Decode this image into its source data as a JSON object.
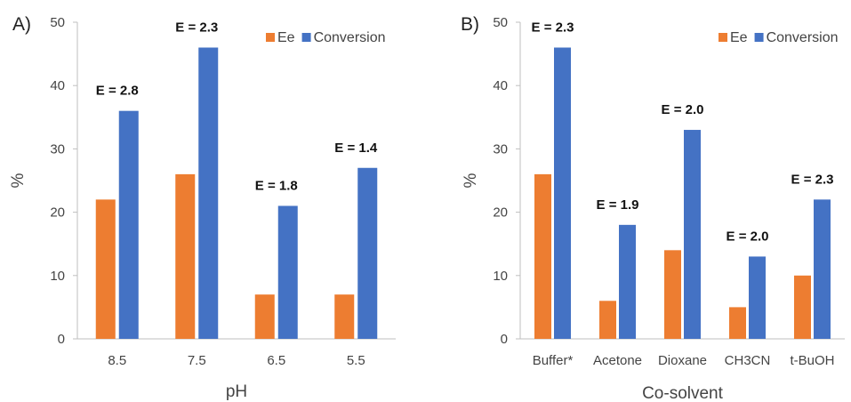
{
  "colors": {
    "ee": "#ED7D31",
    "conversion": "#4472C4"
  },
  "chart_data": [
    {
      "type": "bar",
      "panel_label": "A)",
      "categories": [
        "8.5",
        "7.5",
        "6.5",
        "5.5"
      ],
      "series": [
        {
          "name": "Ee",
          "values": [
            22,
            26,
            7,
            7
          ]
        },
        {
          "name": "Conversion",
          "values": [
            36,
            46,
            21,
            27
          ]
        }
      ],
      "annotations": [
        "E = 2.8",
        "E = 2.3",
        "E = 1.8",
        "E = 1.4"
      ],
      "xlabel": "pH",
      "ylabel": "%",
      "ylim": [
        0,
        50
      ],
      "yticks": [
        0,
        10,
        20,
        30,
        40,
        50
      ],
      "grid": false,
      "legend": "top-right"
    },
    {
      "type": "bar",
      "panel_label": "B)",
      "categories": [
        "Buffer*",
        "Acetone",
        "Dioxane",
        "CH3CN",
        "t-BuOH"
      ],
      "series": [
        {
          "name": "Ee",
          "values": [
            26,
            6,
            14,
            5,
            10
          ]
        },
        {
          "name": "Conversion",
          "values": [
            46,
            18,
            33,
            13,
            22
          ]
        }
      ],
      "annotations": [
        "E = 2.3",
        "E = 1.9",
        "E = 2.0",
        "E = 2.0",
        "E = 2.3"
      ],
      "xlabel": "Co-solvent",
      "ylabel": "%",
      "ylim": [
        0,
        50
      ],
      "yticks": [
        0,
        10,
        20,
        30,
        40,
        50
      ],
      "grid": false,
      "legend": "top-right"
    }
  ]
}
